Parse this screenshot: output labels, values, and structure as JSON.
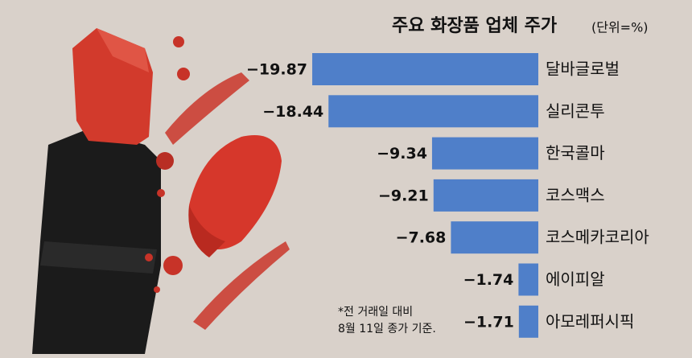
{
  "chart_data": {
    "type": "bar",
    "orientation": "horizontal",
    "title": "주요 화장품 업체 주가",
    "subtitle": "(단위=%)",
    "categories": [
      "달바글로벌",
      "실리콘투",
      "한국콜마",
      "코스맥스",
      "코스메카코리아",
      "에이피알",
      "아모레퍼시픽"
    ],
    "values": [
      -19.87,
      -18.44,
      -9.34,
      -9.21,
      -7.68,
      -1.74,
      -1.71
    ],
    "value_labels": [
      "−19.87",
      "−18.44",
      "−9.34",
      "−9.21",
      "−7.68",
      "−1.74",
      "−1.71"
    ],
    "color": "#4f7fc9",
    "note": [
      "*전 거래일 대비",
      "8월 11일 종가 기준."
    ]
  }
}
